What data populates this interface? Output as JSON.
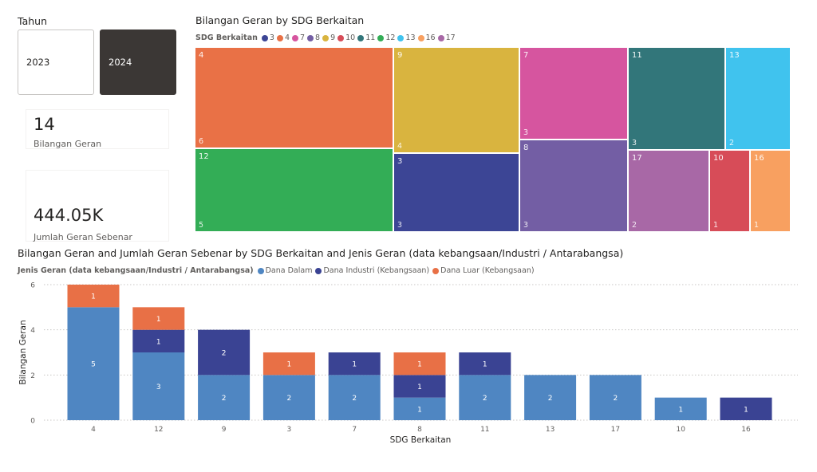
{
  "slicer": {
    "title": "Tahun",
    "options": [
      {
        "label": "2023",
        "selected": false
      },
      {
        "label": "2024",
        "selected": true
      }
    ]
  },
  "cards": [
    {
      "value": "14",
      "label": "Bilangan Geran"
    },
    {
      "value": "444.05K",
      "label": "Jumlah Geran Sebenar"
    }
  ],
  "chart_data": [
    {
      "type": "treemap",
      "title": "Bilangan Geran by SDG Berkaitan",
      "legend_title": "SDG Berkaitan",
      "legend": [
        {
          "label": "3",
          "color": "#3c4595"
        },
        {
          "label": "4",
          "color": "#e97146"
        },
        {
          "label": "7",
          "color": "#d6559f"
        },
        {
          "label": "8",
          "color": "#735ea4"
        },
        {
          "label": "9",
          "color": "#d9b43f"
        },
        {
          "label": "10",
          "color": "#d74c58"
        },
        {
          "label": "11",
          "color": "#32767a"
        },
        {
          "label": "12",
          "color": "#33ad56"
        },
        {
          "label": "13",
          "color": "#40c3ee"
        },
        {
          "label": "16",
          "color": "#f8a060"
        },
        {
          "label": "17",
          "color": "#a868a6"
        }
      ],
      "legend_position": "top-left",
      "nodes": [
        {
          "label": "4",
          "value": 6,
          "color": "#e97146"
        },
        {
          "label": "12",
          "value": 5,
          "color": "#33ad56"
        },
        {
          "label": "9",
          "value": 4,
          "color": "#d9b43f"
        },
        {
          "label": "3",
          "value": 3,
          "color": "#3c4595"
        },
        {
          "label": "7",
          "value": 3,
          "color": "#d6559f"
        },
        {
          "label": "8",
          "value": 3,
          "color": "#735ea4"
        },
        {
          "label": "11",
          "value": 3,
          "color": "#32767a"
        },
        {
          "label": "13",
          "value": 2,
          "color": "#40c3ee"
        },
        {
          "label": "17",
          "value": 2,
          "color": "#a868a6"
        },
        {
          "label": "10",
          "value": 1,
          "color": "#d74c58"
        },
        {
          "label": "16",
          "value": 1,
          "color": "#f8a060"
        }
      ]
    },
    {
      "type": "bar",
      "stacked": true,
      "title": "Bilangan Geran and Jumlah Geran Sebenar by SDG Berkaitan and Jenis Geran (data kebangsaan/Industri / Antarabangsa)",
      "legend_title": "Jenis Geran (data kebangsaan/Industri / Antarabangsa)",
      "legend_position": "top-left",
      "xlabel": "SDG Berkaitan",
      "ylabel": "Bilangan Geran",
      "ylim": [
        0,
        6
      ],
      "yticks": [
        0,
        2,
        4,
        6
      ],
      "grid": true,
      "categories": [
        "4",
        "12",
        "9",
        "3",
        "7",
        "8",
        "11",
        "13",
        "17",
        "10",
        "16"
      ],
      "series": [
        {
          "name": "Dana Dalam",
          "color": "#4f86c2",
          "values": [
            5,
            3,
            2,
            2,
            2,
            1,
            2,
            2,
            2,
            1,
            0
          ]
        },
        {
          "name": "Dana Industri (Kebangsaan)",
          "color": "#3a4393",
          "values": [
            0,
            1,
            2,
            0,
            1,
            1,
            1,
            0,
            0,
            0,
            1
          ]
        },
        {
          "name": "Dana Luar (Kebangsaan)",
          "color": "#e87046",
          "values": [
            1,
            1,
            0,
            1,
            0,
            1,
            0,
            0,
            0,
            0,
            0
          ]
        }
      ]
    }
  ]
}
